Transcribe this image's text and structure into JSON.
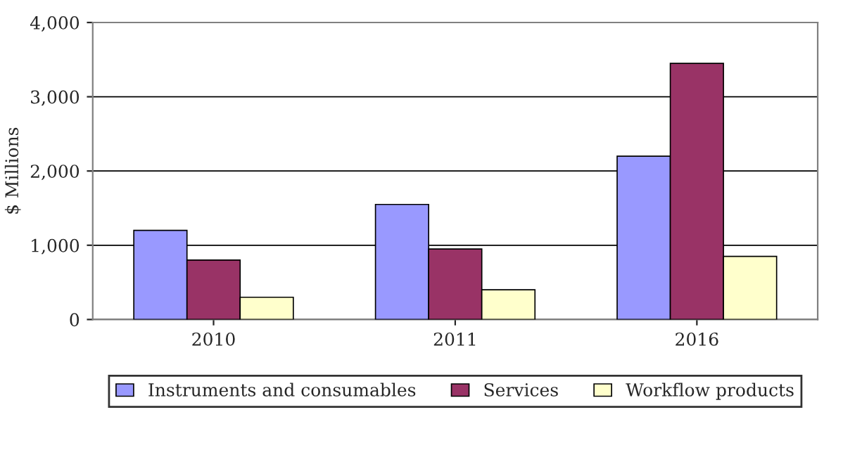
{
  "chart_data": {
    "type": "bar",
    "ylabel": "$ Millions",
    "categories": [
      "2010",
      "2011",
      "2016"
    ],
    "series": [
      {
        "name": "Instruments and consumables",
        "color": "#9999ff",
        "values": [
          1200,
          1550,
          2200
        ]
      },
      {
        "name": "Services",
        "color": "#993366",
        "values": [
          800,
          950,
          3450
        ]
      },
      {
        "name": "Workflow products",
        "color": "#ffffcc",
        "values": [
          300,
          400,
          850
        ]
      }
    ],
    "ylim": [
      0,
      4000
    ],
    "yticks": [
      {
        "value": 0,
        "label": "0"
      },
      {
        "value": 1000,
        "label": "1,000"
      },
      {
        "value": 2000,
        "label": "2,000"
      },
      {
        "value": 3000,
        "label": "3,000"
      },
      {
        "value": 4000,
        "label": "4,000"
      }
    ],
    "grid": "y",
    "legend": "bottom"
  }
}
